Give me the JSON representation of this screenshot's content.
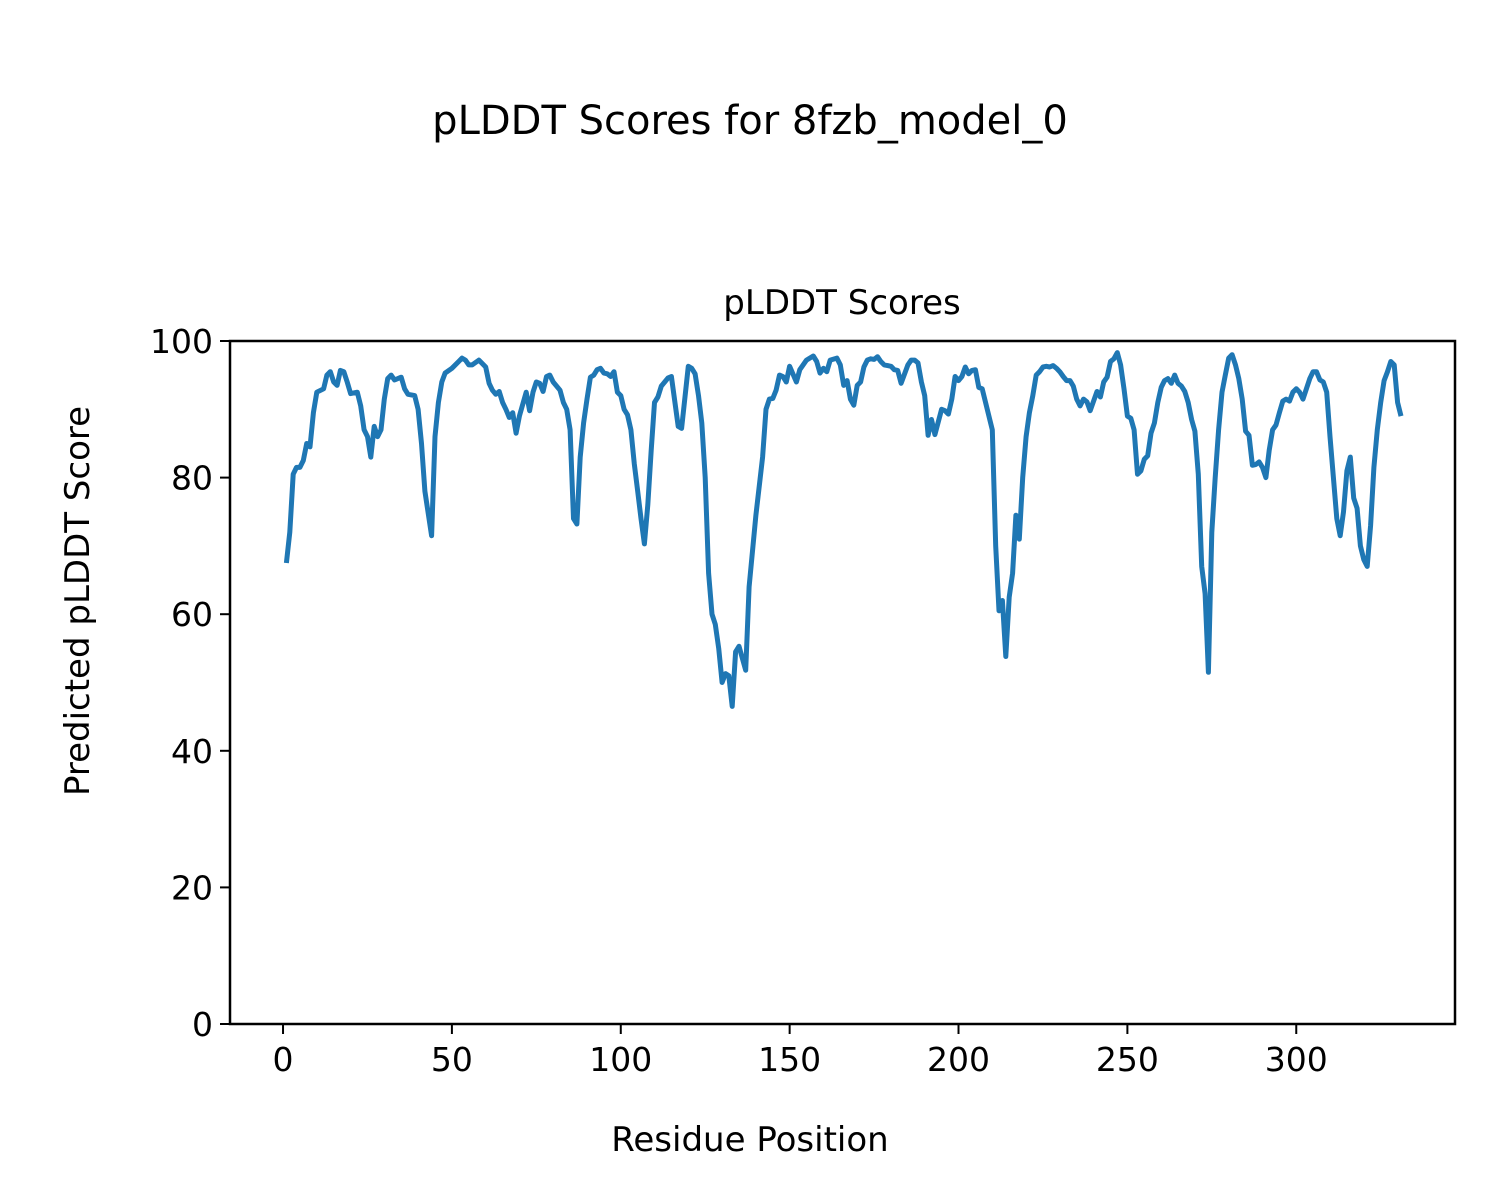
{
  "chart_data": {
    "type": "line",
    "title": "pLDDT Scores for 8fzb_model_0",
    "subtitle": "pLDDT Scores",
    "xlabel": "Residue Position",
    "ylabel": "Predicted pLDDT Score",
    "xlim": [
      -15.7,
      347
    ],
    "ylim": [
      0,
      100
    ],
    "xticks": [
      0,
      50,
      100,
      150,
      200,
      250,
      300
    ],
    "yticks": [
      0,
      20,
      40,
      60,
      80,
      100
    ],
    "grid": false,
    "series": [
      {
        "name": "pLDDT",
        "color": "#1f77b4",
        "x": [
          1,
          2,
          3,
          4,
          5,
          6,
          7,
          8,
          9,
          10,
          12,
          13,
          14,
          15,
          16,
          17,
          18,
          19,
          20,
          22,
          23,
          24,
          25,
          26,
          27,
          28,
          29,
          30,
          31,
          32,
          33,
          34,
          35,
          36,
          37,
          39,
          40,
          41,
          42,
          44,
          45,
          46,
          47,
          48,
          50,
          52,
          53,
          54,
          55,
          56,
          58,
          60,
          61,
          62,
          63,
          64,
          65,
          66,
          67,
          68,
          69,
          70,
          72,
          73,
          74,
          75,
          76,
          77,
          78,
          79,
          80,
          82,
          83,
          84,
          85,
          86,
          87,
          88,
          89,
          90,
          91,
          92,
          93,
          94,
          95,
          96,
          97,
          98,
          99,
          100,
          101,
          102,
          103,
          104,
          105,
          106,
          107,
          108,
          109,
          110,
          111,
          112,
          113,
          114,
          115,
          117,
          118,
          120,
          121,
          122,
          123,
          124,
          125,
          126,
          127,
          128,
          129,
          130,
          131,
          132,
          133,
          134,
          135,
          137,
          138,
          140,
          142,
          143,
          144,
          145,
          146,
          147,
          148,
          149,
          150,
          152,
          153,
          155,
          157,
          158,
          159,
          160,
          161,
          162,
          164,
          165,
          166,
          167,
          168,
          169,
          170,
          171,
          172,
          173,
          174,
          175,
          176,
          177,
          178,
          179,
          180,
          181,
          182,
          183,
          185,
          186,
          187,
          188,
          189,
          190,
          191,
          192,
          193,
          195,
          196,
          197,
          198,
          199,
          200,
          201,
          202,
          203,
          204,
          205,
          206,
          207,
          210,
          211,
          212,
          213,
          214,
          215,
          216,
          217,
          218,
          219,
          220,
          221,
          222,
          223,
          224,
          225,
          226,
          227,
          228,
          229,
          230,
          231,
          232,
          233,
          234,
          235,
          236,
          237,
          238,
          239,
          240,
          241,
          242,
          243,
          244,
          245,
          246,
          247,
          248,
          249,
          250,
          251,
          252,
          253,
          254,
          255,
          256,
          257,
          258,
          259,
          260,
          261,
          262,
          263,
          264,
          265,
          266,
          267,
          268,
          269,
          270,
          271,
          272,
          273,
          274,
          275,
          276,
          277,
          278,
          279,
          280,
          281,
          282,
          283,
          284,
          285,
          286,
          287,
          288,
          289,
          290,
          291,
          292,
          293,
          294,
          295,
          296,
          297,
          298,
          299,
          300,
          301,
          302,
          303,
          304,
          305,
          306,
          307,
          308,
          309,
          310,
          311,
          312,
          313,
          314,
          315,
          316,
          317,
          318,
          319,
          320,
          321,
          322,
          323,
          324,
          325,
          326,
          327,
          328,
          329,
          330,
          331
        ],
        "y": [
          67.5,
          72,
          80.5,
          81.5,
          81.5,
          82.5,
          85,
          84.5,
          89.5,
          92.5,
          93,
          95,
          95.5,
          94,
          93.5,
          95.7,
          95.5,
          94,
          92.3,
          92.5,
          90.5,
          87,
          86,
          83,
          87.5,
          86,
          87,
          91.5,
          94.5,
          95,
          94.3,
          94.5,
          94.7,
          93,
          92.2,
          92,
          90,
          85,
          78,
          71.5,
          86,
          91,
          94,
          95.3,
          96,
          97,
          97.5,
          97.2,
          96.5,
          96.5,
          97.2,
          96.2,
          93.8,
          92.8,
          92.2,
          92.6,
          91,
          90,
          88.8,
          89.5,
          86.5,
          89,
          92.5,
          89.8,
          92.5,
          94,
          93.8,
          92.6,
          94.8,
          95,
          94,
          92.8,
          91,
          90,
          87,
          74,
          73.2,
          83,
          88,
          91.5,
          94.7,
          95,
          95.8,
          96,
          95.3,
          95.2,
          94.8,
          95.5,
          92.5,
          92,
          90,
          89.2,
          87,
          82,
          78,
          74,
          70.3,
          76,
          84,
          91,
          91.8,
          93.4,
          94,
          94.6,
          94.8,
          87.5,
          87.2,
          96.3,
          96,
          95.2,
          92,
          88,
          80,
          66,
          60,
          58.5,
          55,
          50,
          51.3,
          51,
          46.5,
          54.5,
          55.3,
          51.8,
          64,
          74.5,
          83,
          90,
          91.5,
          91.6,
          92.8,
          95,
          94.8,
          94,
          96.3,
          94,
          95.8,
          97.2,
          97.8,
          97,
          95.3,
          96,
          95.5,
          97.2,
          97.5,
          96.5,
          93.5,
          94.2,
          91.5,
          90.6,
          93.5,
          94,
          96.2,
          97.2,
          97.4,
          97.3,
          97.7,
          97,
          96.5,
          96.4,
          96.3,
          95.8,
          95.7,
          93.8,
          96.5,
          97.2,
          97.2,
          96.8,
          94,
          92,
          86.2,
          88.5,
          86.3,
          90,
          89.8,
          89.3,
          91.5,
          94.8,
          94.2,
          94.8,
          96.2,
          95.2,
          95.7,
          95.8,
          93.2,
          93,
          87,
          70,
          60.5,
          62,
          53.8,
          62.5,
          66,
          74.5,
          71,
          80,
          86,
          89.5,
          92,
          95,
          95.5,
          96.2,
          96.3,
          96.2,
          96.4,
          96,
          95.5,
          94.8,
          94.2,
          94.2,
          93.4,
          91.5,
          90.5,
          91.5,
          91.1,
          89.8,
          91.2,
          92.6,
          91.8,
          94,
          94.7,
          97,
          97.4,
          98.3,
          96.5,
          93,
          89,
          88.7,
          87,
          80.5,
          81,
          82.7,
          83.2,
          86.5,
          88,
          91,
          93.2,
          94.2,
          94.5,
          93.8,
          95,
          93.8,
          93.4,
          92.6,
          91,
          88.5,
          86.8,
          80.5,
          67,
          63,
          51.5,
          72,
          80,
          87,
          92.5,
          95,
          97.5,
          98,
          96.5,
          94.5,
          91.5,
          86.8,
          86.2,
          81.8,
          81.9,
          82.3,
          81.5,
          80,
          84,
          87,
          87.7,
          89.5,
          91.2,
          91.5,
          91.2,
          92.5,
          93,
          92.5,
          91.5,
          93,
          94.5,
          95.5,
          95.5,
          94.3,
          94,
          92.5,
          86,
          80,
          74,
          71.5,
          75,
          81,
          83,
          77,
          75.5,
          70,
          68,
          67,
          73,
          81.5,
          87,
          91,
          94.2,
          95.5,
          97,
          96.5,
          91,
          89
        ]
      }
    ]
  }
}
